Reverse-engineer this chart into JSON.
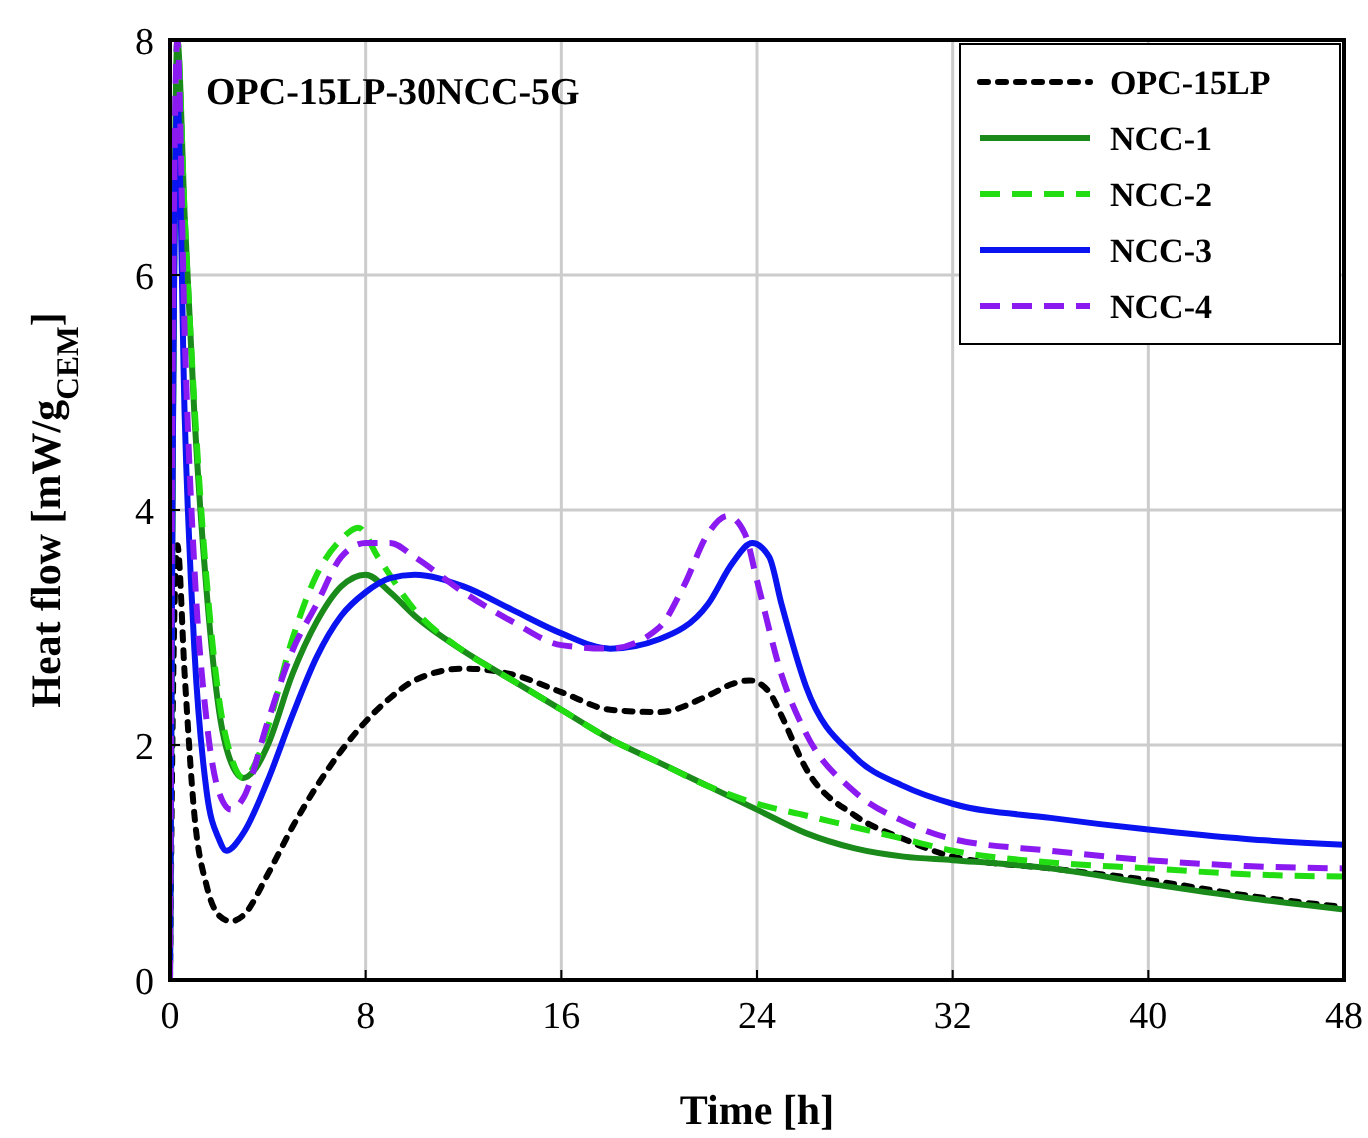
{
  "chart_data": {
    "type": "line",
    "title": "OPC-15LP-30NCC-5G",
    "xlabel": "Time [h]",
    "ylabel": "Heat flow [mW/g$_{CEM}$]",
    "xlim": [
      0,
      48
    ],
    "ylim": [
      0,
      8
    ],
    "xticks": [
      0,
      8,
      16,
      24,
      32,
      40,
      48
    ],
    "yticks": [
      0,
      2,
      4,
      6,
      8
    ],
    "grid": true,
    "legend": "top right",
    "series": [
      {
        "name": "OPC-15LP",
        "color": "#000000",
        "line_style": "dotted",
        "x": [
          0,
          0.15,
          0.3,
          0.6,
          1,
          1.5,
          2,
          2.5,
          3,
          4,
          5,
          6,
          7,
          8,
          9,
          10,
          12,
          14,
          16,
          18,
          20,
          22,
          23,
          23.7,
          24.5,
          25,
          26,
          28,
          30,
          32,
          36,
          40,
          44,
          48
        ],
        "values": [
          0,
          2.8,
          3.7,
          2.6,
          1.4,
          0.8,
          0.55,
          0.5,
          0.55,
          0.9,
          1.3,
          1.65,
          1.95,
          2.2,
          2.4,
          2.55,
          2.65,
          2.6,
          2.45,
          2.3,
          2.28,
          2.42,
          2.52,
          2.55,
          2.45,
          2.25,
          1.8,
          1.4,
          1.2,
          1.05,
          0.95,
          0.85,
          0.72,
          0.62
        ]
      },
      {
        "name": "NCC-1",
        "color": "#1a8a1a",
        "line_style": "solid",
        "x": [
          0,
          0.1,
          0.3,
          0.6,
          1,
          1.5,
          2,
          2.5,
          3,
          3.5,
          4,
          5,
          6,
          7,
          8,
          9,
          10,
          12,
          14,
          16,
          18,
          20,
          22,
          24,
          26,
          28,
          30,
          32,
          36,
          40,
          44,
          48
        ],
        "values": [
          0,
          4,
          8,
          6.5,
          4.8,
          3.3,
          2.3,
          1.85,
          1.72,
          1.8,
          2.0,
          2.6,
          3.05,
          3.35,
          3.45,
          3.3,
          3.1,
          2.8,
          2.55,
          2.3,
          2.05,
          1.85,
          1.65,
          1.45,
          1.25,
          1.12,
          1.05,
          1.02,
          0.95,
          0.82,
          0.7,
          0.6
        ]
      },
      {
        "name": "NCC-2",
        "color": "#22dd11",
        "line_style": "dashed",
        "x": [
          0,
          0.1,
          0.3,
          0.6,
          1,
          1.5,
          2,
          2.5,
          3,
          3.5,
          4,
          5,
          6,
          7,
          7.7,
          8.5,
          10,
          12,
          14,
          16,
          18,
          20,
          22,
          24,
          26,
          28,
          30,
          32,
          36,
          40,
          44,
          48
        ],
        "values": [
          0,
          4,
          8,
          6.5,
          4.9,
          3.4,
          2.4,
          1.9,
          1.72,
          1.85,
          2.15,
          2.9,
          3.45,
          3.75,
          3.85,
          3.6,
          3.15,
          2.8,
          2.55,
          2.3,
          2.05,
          1.85,
          1.65,
          1.5,
          1.4,
          1.3,
          1.2,
          1.1,
          1.0,
          0.95,
          0.9,
          0.88
        ]
      },
      {
        "name": "NCC-3",
        "color": "#0a14f0",
        "line_style": "solid",
        "x": [
          0,
          0.1,
          0.3,
          0.6,
          1,
          1.5,
          2,
          2.3,
          3,
          4,
          5,
          6,
          7,
          8,
          9,
          10,
          12,
          14,
          16,
          18,
          20,
          22,
          23,
          23.8,
          24.5,
          25,
          26,
          28,
          30,
          32,
          36,
          40,
          44,
          48
        ],
        "values": [
          0,
          4,
          7.5,
          4.8,
          2.8,
          1.6,
          1.2,
          1.1,
          1.25,
          1.7,
          2.25,
          2.75,
          3.1,
          3.3,
          3.42,
          3.45,
          3.35,
          3.15,
          2.95,
          2.82,
          2.9,
          3.2,
          3.55,
          3.72,
          3.6,
          3.2,
          2.5,
          1.9,
          1.65,
          1.5,
          1.38,
          1.28,
          1.2,
          1.15
        ]
      },
      {
        "name": "NCC-4",
        "color": "#8a1af0",
        "line_style": "dashed",
        "x": [
          0,
          0.1,
          0.3,
          0.6,
          1,
          1.5,
          2,
          2.5,
          3,
          4,
          5,
          6,
          7,
          8,
          9,
          10,
          12,
          14,
          16,
          18,
          20,
          21,
          22,
          22.8,
          23.5,
          24,
          25,
          26,
          28,
          30,
          32,
          36,
          40,
          44,
          48
        ],
        "values": [
          0,
          5,
          8,
          5.5,
          3.5,
          2.2,
          1.6,
          1.45,
          1.55,
          2.2,
          2.8,
          3.2,
          3.6,
          3.72,
          3.72,
          3.6,
          3.3,
          3.05,
          2.85,
          2.82,
          3.0,
          3.35,
          3.8,
          3.95,
          3.8,
          3.4,
          2.6,
          2.1,
          1.6,
          1.35,
          1.2,
          1.1,
          1.02,
          0.97,
          0.95
        ]
      }
    ]
  }
}
